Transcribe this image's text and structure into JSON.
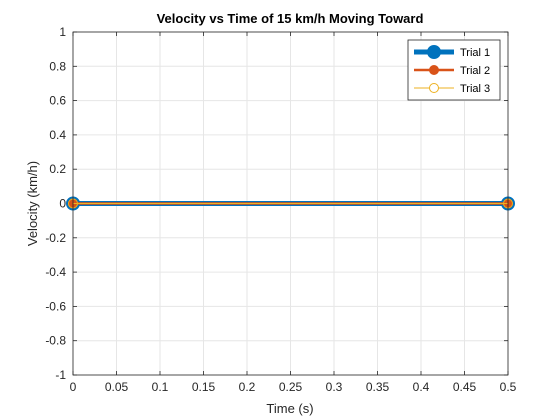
{
  "chart_data": {
    "type": "line",
    "title": "Velocity vs Time of 15 km/h Moving Toward",
    "xlabel": "Time (s)",
    "ylabel": "Velocity (km/h)",
    "xlim": [
      0,
      0.5
    ],
    "ylim": [
      -1,
      1
    ],
    "x_ticks": [
      "0",
      "0.05",
      "0.1",
      "0.15",
      "0.2",
      "0.25",
      "0.3",
      "0.35",
      "0.4",
      "0.45",
      "0.5"
    ],
    "y_ticks": [
      "-1",
      "-0.8",
      "-0.6",
      "-0.4",
      "-0.2",
      "0",
      "0.2",
      "0.4",
      "0.6",
      "0.8",
      "1"
    ],
    "grid": true,
    "legend_position": "top-right",
    "series": [
      {
        "name": "Trial 1",
        "color": "#0072BD",
        "marker": "circle-filled",
        "x": [
          0,
          0.5
        ],
        "y": [
          0,
          0
        ]
      },
      {
        "name": "Trial 2",
        "color": "#D95319",
        "marker": "circle-filled",
        "x": [
          0,
          0.5
        ],
        "y": [
          0,
          0
        ]
      },
      {
        "name": "Trial 3",
        "color": "#EDB120",
        "marker": "circle-open",
        "x": [
          0,
          0.5
        ],
        "y": [
          0,
          0
        ]
      }
    ]
  }
}
